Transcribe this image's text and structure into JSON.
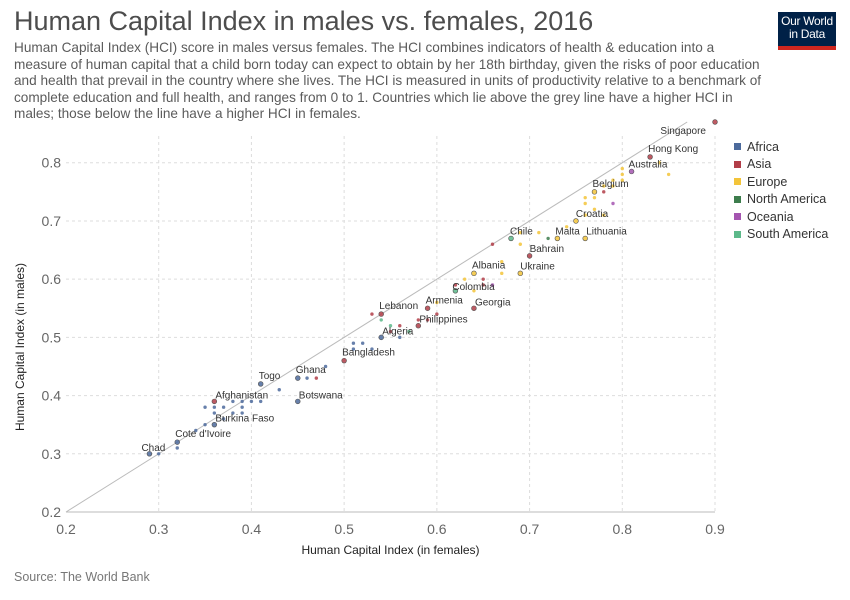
{
  "header": {
    "title": "Human Capital Index in males vs. females, 2016",
    "subtitle": "Human Capital Index (HCI) score in males versus females. The HCI combines indicators of health & education into a measure of human capital that a child born today can expect to obtain by her 18th birthday, given the risks of poor education and health that prevail in the country where she lives. The HCI is measured in units of productivity relative to a benchmark of complete education and full health, and ranges from 0 to 1. Countries which lie above the grey line have a higher HCI in males; those below the line have a higher HCI in females.",
    "logo_line1": "Our World",
    "logo_line2": "in Data"
  },
  "footer": {
    "source": "Source: The World Bank"
  },
  "colors": {
    "Africa": "#4c6a9c",
    "Asia": "#b13d48",
    "Europe": "#f3c43a",
    "North America": "#3d7d4d",
    "Oceania": "#a455b0",
    "South America": "#5cb98a",
    "grid": "#dddddd",
    "reference_line": "#bbbbbb"
  },
  "chart_data": {
    "type": "scatter",
    "xlabel": "Human Capital Index (in females)",
    "ylabel": "Human Capital Index (in males)",
    "xlim": [
      0.2,
      0.9
    ],
    "ylim": [
      0.2,
      0.87
    ],
    "xticks": [
      "0.2",
      "0.3",
      "0.4",
      "0.5",
      "0.6",
      "0.7",
      "0.8",
      "0.9"
    ],
    "yticks": [
      "0.2",
      "0.3",
      "0.4",
      "0.5",
      "0.6",
      "0.7",
      "0.8"
    ],
    "grid": true,
    "legend_position": "right",
    "legend": [
      "Africa",
      "Asia",
      "Europe",
      "North America",
      "Oceania",
      "South America"
    ],
    "points": [
      {
        "label": "Singapore",
        "x": 0.9,
        "y": 0.87,
        "region": "Asia"
      },
      {
        "label": "Hong Kong",
        "x": 0.83,
        "y": 0.81,
        "region": "Asia"
      },
      {
        "label": "Australia",
        "x": 0.81,
        "y": 0.785,
        "region": "Oceania"
      },
      {
        "label": "Belgium",
        "x": 0.77,
        "y": 0.75,
        "region": "Europe"
      },
      {
        "label": "Croatia",
        "x": 0.75,
        "y": 0.7,
        "region": "Europe"
      },
      {
        "label": "Chile",
        "x": 0.68,
        "y": 0.67,
        "region": "South America"
      },
      {
        "label": "Malta",
        "x": 0.73,
        "y": 0.67,
        "region": "Europe"
      },
      {
        "label": "Lithuania",
        "x": 0.76,
        "y": 0.67,
        "region": "Europe"
      },
      {
        "label": "Bahrain",
        "x": 0.7,
        "y": 0.64,
        "region": "Asia"
      },
      {
        "label": "Ukraine",
        "x": 0.69,
        "y": 0.61,
        "region": "Europe"
      },
      {
        "label": "Albania",
        "x": 0.64,
        "y": 0.61,
        "region": "Europe"
      },
      {
        "label": "Colombia",
        "x": 0.62,
        "y": 0.58,
        "region": "South America"
      },
      {
        "label": "Armenia",
        "x": 0.59,
        "y": 0.55,
        "region": "Asia"
      },
      {
        "label": "Georgia",
        "x": 0.64,
        "y": 0.55,
        "region": "Asia"
      },
      {
        "label": "Lebanon",
        "x": 0.54,
        "y": 0.54,
        "region": "Asia"
      },
      {
        "label": "Philippines",
        "x": 0.58,
        "y": 0.52,
        "region": "Asia"
      },
      {
        "label": "Algeria",
        "x": 0.54,
        "y": 0.5,
        "region": "Africa"
      },
      {
        "label": "Bangladesh",
        "x": 0.5,
        "y": 0.46,
        "region": "Asia"
      },
      {
        "label": "Togo",
        "x": 0.41,
        "y": 0.42,
        "region": "Africa"
      },
      {
        "label": "Ghana",
        "x": 0.45,
        "y": 0.43,
        "region": "Africa"
      },
      {
        "label": "Botswana",
        "x": 0.45,
        "y": 0.39,
        "region": "Africa"
      },
      {
        "label": "Afghanistan",
        "x": 0.36,
        "y": 0.39,
        "region": "Asia"
      },
      {
        "label": "Burkina Faso",
        "x": 0.36,
        "y": 0.35,
        "region": "Africa"
      },
      {
        "label": "Cote d'Ivoire",
        "x": 0.32,
        "y": 0.32,
        "region": "Africa"
      },
      {
        "label": "Chad",
        "x": 0.29,
        "y": 0.3,
        "region": "Africa"
      },
      {
        "x": 0.85,
        "y": 0.78,
        "region": "Europe"
      },
      {
        "x": 0.84,
        "y": 0.8,
        "region": "Europe"
      },
      {
        "x": 0.8,
        "y": 0.79,
        "region": "Europe"
      },
      {
        "x": 0.8,
        "y": 0.78,
        "region": "Europe"
      },
      {
        "x": 0.8,
        "y": 0.77,
        "region": "Europe"
      },
      {
        "x": 0.79,
        "y": 0.77,
        "region": "Europe"
      },
      {
        "x": 0.79,
        "y": 0.76,
        "region": "Europe"
      },
      {
        "x": 0.78,
        "y": 0.76,
        "region": "Europe"
      },
      {
        "x": 0.78,
        "y": 0.75,
        "region": "Asia"
      },
      {
        "x": 0.77,
        "y": 0.74,
        "region": "Europe"
      },
      {
        "x": 0.76,
        "y": 0.74,
        "region": "Europe"
      },
      {
        "x": 0.76,
        "y": 0.73,
        "region": "Europe"
      },
      {
        "x": 0.79,
        "y": 0.73,
        "region": "Oceania"
      },
      {
        "x": 0.77,
        "y": 0.72,
        "region": "Europe"
      },
      {
        "x": 0.78,
        "y": 0.71,
        "region": "Europe"
      },
      {
        "x": 0.76,
        "y": 0.71,
        "region": "Europe"
      },
      {
        "x": 0.74,
        "y": 0.69,
        "region": "Europe"
      },
      {
        "x": 0.72,
        "y": 0.67,
        "region": "North America"
      },
      {
        "x": 0.71,
        "y": 0.68,
        "region": "Europe"
      },
      {
        "x": 0.69,
        "y": 0.68,
        "region": "Europe"
      },
      {
        "x": 0.69,
        "y": 0.66,
        "region": "Europe"
      },
      {
        "x": 0.66,
        "y": 0.66,
        "region": "Asia"
      },
      {
        "x": 0.67,
        "y": 0.63,
        "region": "Europe"
      },
      {
        "x": 0.67,
        "y": 0.61,
        "region": "Europe"
      },
      {
        "x": 0.65,
        "y": 0.6,
        "region": "Asia"
      },
      {
        "x": 0.65,
        "y": 0.59,
        "region": "Asia"
      },
      {
        "x": 0.66,
        "y": 0.59,
        "region": "Oceania"
      },
      {
        "x": 0.63,
        "y": 0.6,
        "region": "Europe"
      },
      {
        "x": 0.64,
        "y": 0.58,
        "region": "Europe"
      },
      {
        "x": 0.62,
        "y": 0.59,
        "region": "Asia"
      },
      {
        "x": 0.6,
        "y": 0.56,
        "region": "Europe"
      },
      {
        "x": 0.6,
        "y": 0.54,
        "region": "Asia"
      },
      {
        "x": 0.59,
        "y": 0.53,
        "region": "Asia"
      },
      {
        "x": 0.58,
        "y": 0.53,
        "region": "Asia"
      },
      {
        "x": 0.57,
        "y": 0.51,
        "region": "South America"
      },
      {
        "x": 0.56,
        "y": 0.52,
        "region": "Asia"
      },
      {
        "x": 0.56,
        "y": 0.5,
        "region": "Africa"
      },
      {
        "x": 0.55,
        "y": 0.52,
        "region": "South America"
      },
      {
        "x": 0.55,
        "y": 0.51,
        "region": "Asia"
      },
      {
        "x": 0.54,
        "y": 0.53,
        "region": "South America"
      },
      {
        "x": 0.53,
        "y": 0.54,
        "region": "Asia"
      },
      {
        "x": 0.53,
        "y": 0.48,
        "region": "Africa"
      },
      {
        "x": 0.52,
        "y": 0.49,
        "region": "Africa"
      },
      {
        "x": 0.51,
        "y": 0.49,
        "region": "Africa"
      },
      {
        "x": 0.51,
        "y": 0.48,
        "region": "Africa"
      },
      {
        "x": 0.48,
        "y": 0.45,
        "region": "Africa"
      },
      {
        "x": 0.47,
        "y": 0.43,
        "region": "Asia"
      },
      {
        "x": 0.46,
        "y": 0.43,
        "region": "Africa"
      },
      {
        "x": 0.43,
        "y": 0.41,
        "region": "Africa"
      },
      {
        "x": 0.41,
        "y": 0.39,
        "region": "Africa"
      },
      {
        "x": 0.4,
        "y": 0.39,
        "region": "Africa"
      },
      {
        "x": 0.39,
        "y": 0.39,
        "region": "Africa"
      },
      {
        "x": 0.39,
        "y": 0.38,
        "region": "Africa"
      },
      {
        "x": 0.39,
        "y": 0.37,
        "region": "Africa"
      },
      {
        "x": 0.38,
        "y": 0.39,
        "region": "Africa"
      },
      {
        "x": 0.38,
        "y": 0.37,
        "region": "Africa"
      },
      {
        "x": 0.37,
        "y": 0.38,
        "region": "Africa"
      },
      {
        "x": 0.37,
        "y": 0.36,
        "region": "Africa"
      },
      {
        "x": 0.36,
        "y": 0.38,
        "region": "Africa"
      },
      {
        "x": 0.36,
        "y": 0.37,
        "region": "Africa"
      },
      {
        "x": 0.35,
        "y": 0.38,
        "region": "Africa"
      },
      {
        "x": 0.35,
        "y": 0.35,
        "region": "Africa"
      },
      {
        "x": 0.34,
        "y": 0.34,
        "region": "Africa"
      },
      {
        "x": 0.32,
        "y": 0.31,
        "region": "Africa"
      },
      {
        "x": 0.3,
        "y": 0.3,
        "region": "Africa"
      }
    ]
  }
}
